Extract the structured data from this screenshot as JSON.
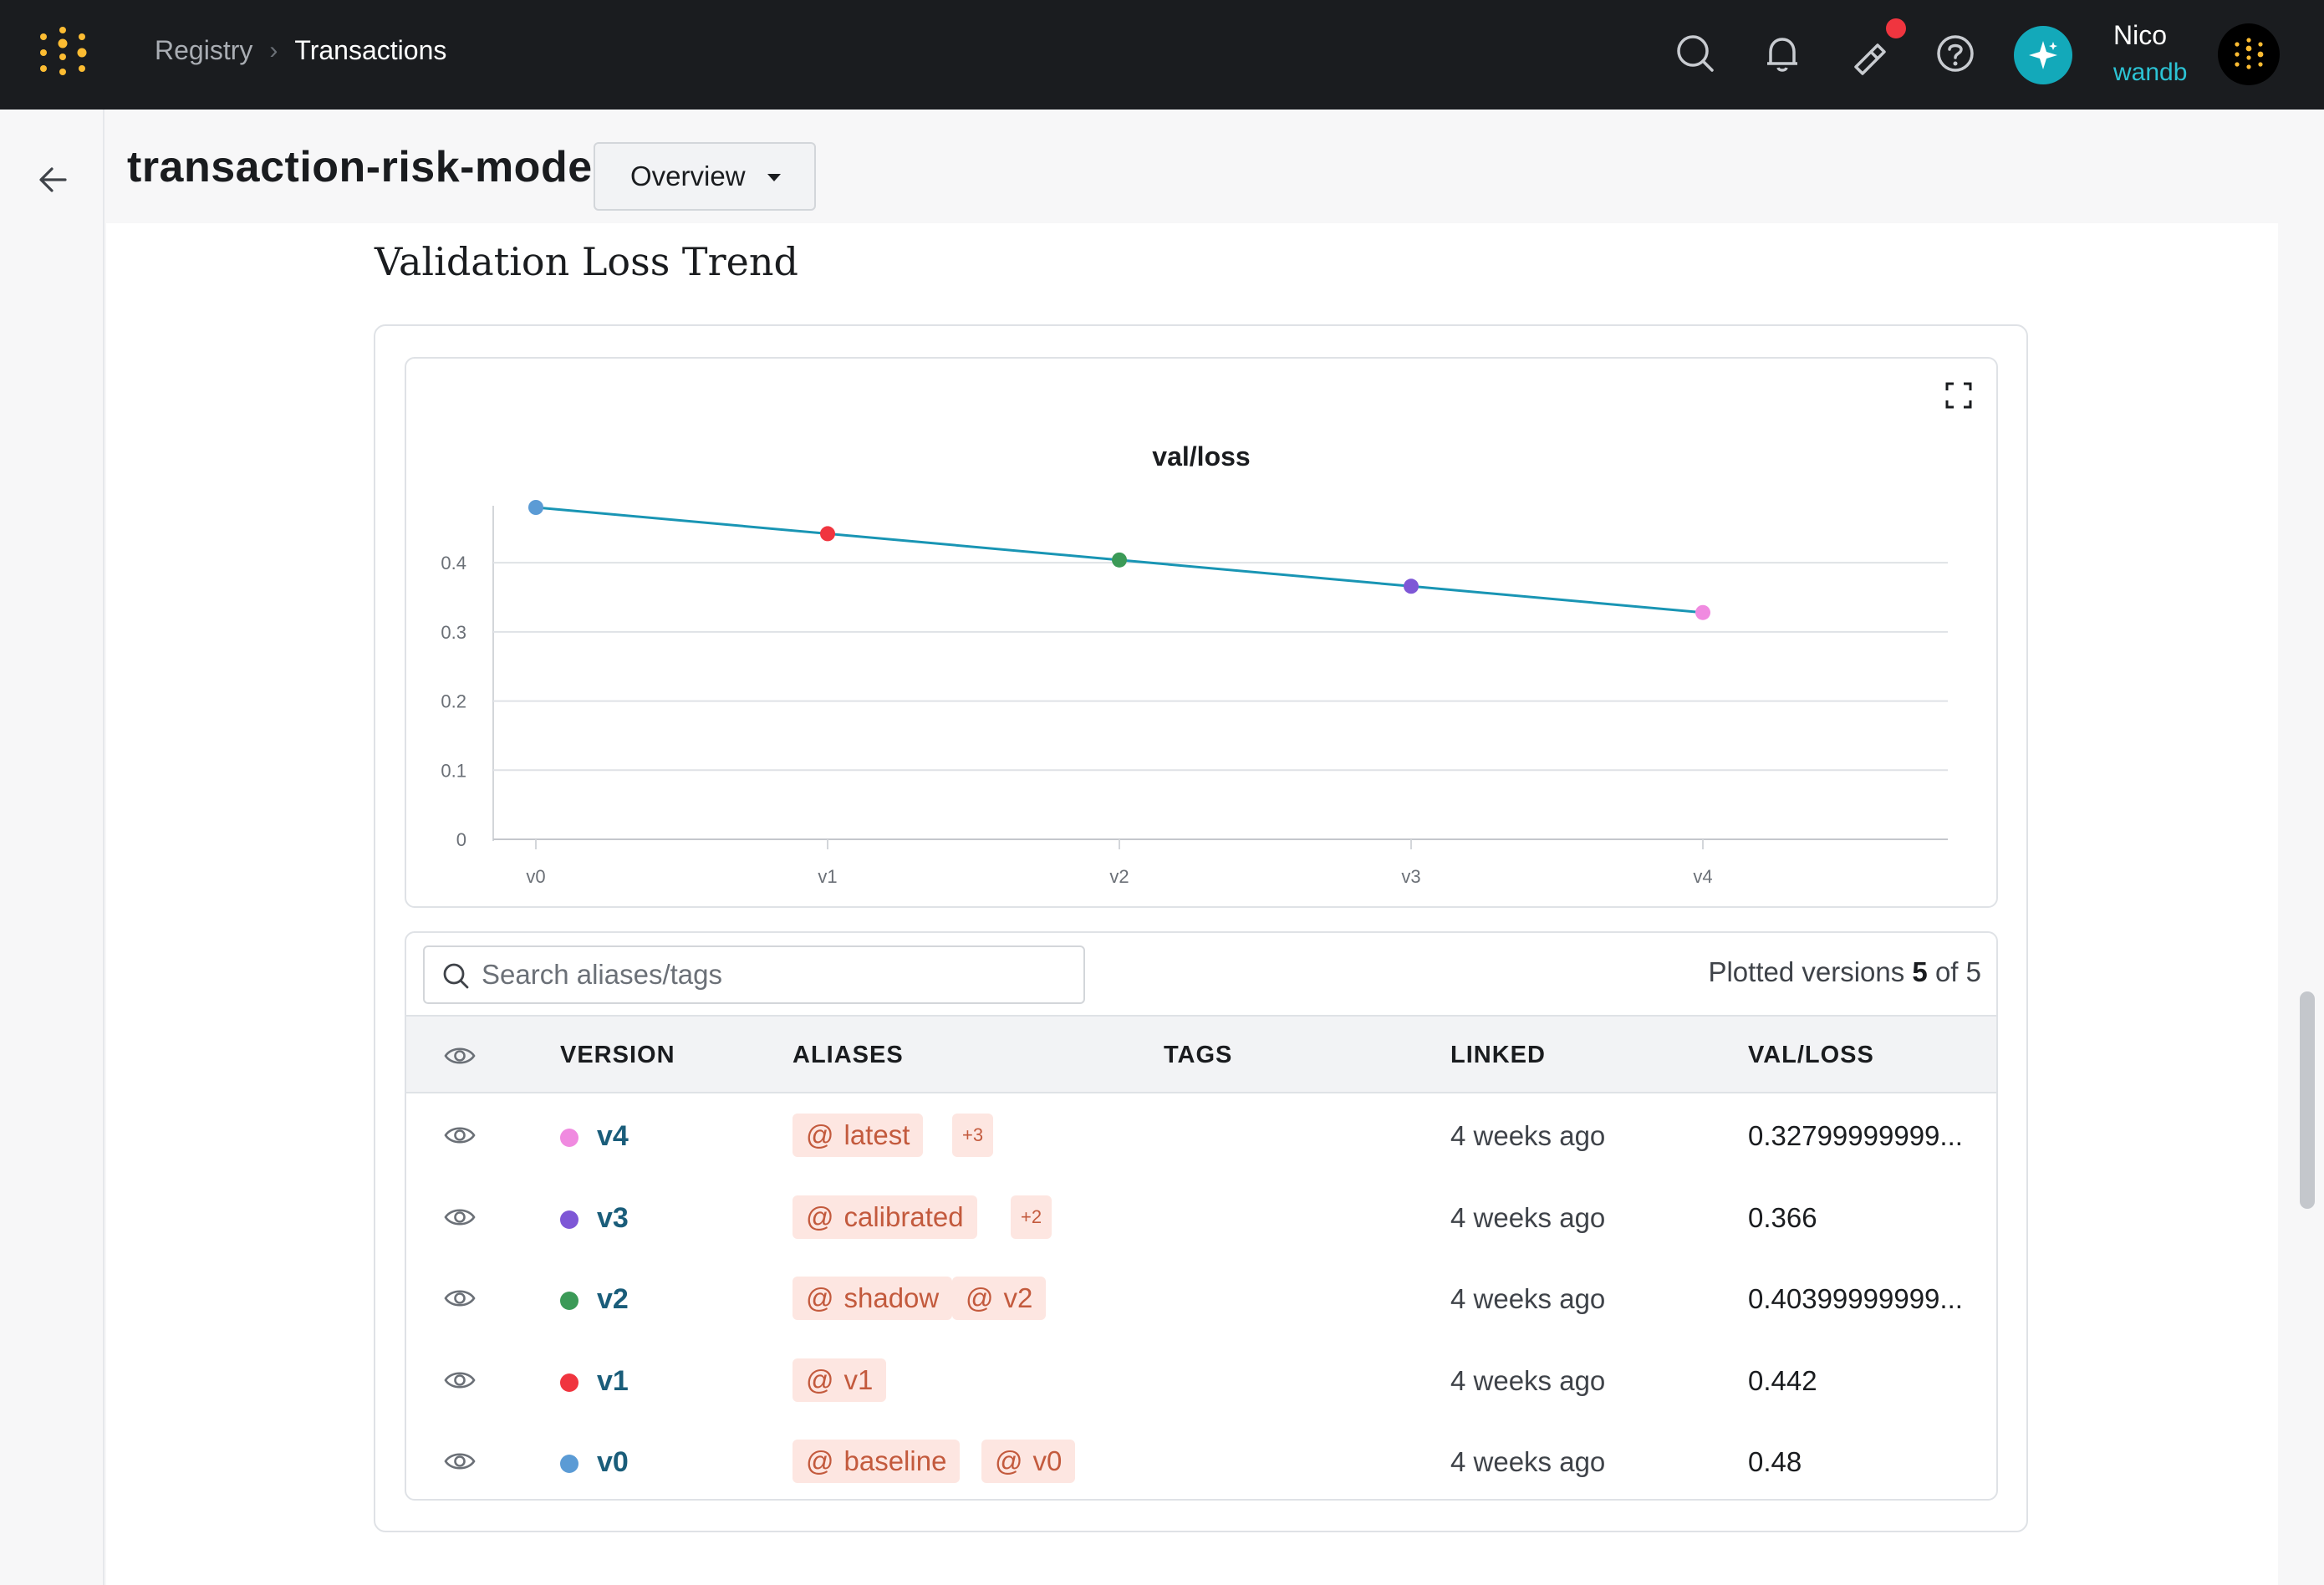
{
  "header": {
    "breadcrumb": [
      "Registry",
      "Transactions"
    ],
    "user_name": "Nico",
    "user_team": "wandb",
    "icons": [
      "search-icon",
      "bell-icon",
      "flashlight-icon",
      "help-icon",
      "sparkle-icon"
    ],
    "accent": "#13a9ba",
    "notification_color": "#f0353f"
  },
  "page": {
    "title": "transaction-risk-model",
    "view_select": "Overview",
    "section_title": "Validation Loss Trend"
  },
  "chart_data": {
    "type": "line",
    "title": "val/loss",
    "categories": [
      "v0",
      "v1",
      "v2",
      "v3",
      "v4"
    ],
    "values": [
      0.48,
      0.442,
      0.404,
      0.366,
      0.328
    ],
    "point_colors": [
      "#5b9bd5",
      "#f0353f",
      "#3b9a57",
      "#7e57d6",
      "#f08ae0"
    ],
    "line_color": "#1995b4",
    "y_ticks": [
      "0",
      "0.1",
      "0.2",
      "0.3",
      "0.4"
    ],
    "ylim": [
      0,
      0.48
    ],
    "grid": true
  },
  "table": {
    "search_placeholder": "Search aliases/tags",
    "plotted_prefix": "Plotted versions",
    "plotted_count": "5",
    "plotted_suffix": "of 5",
    "columns": [
      "VERSION",
      "ALIASES",
      "TAGS",
      "LINKED",
      "VAL/LOSS"
    ],
    "rows": [
      {
        "version": "v4",
        "color": "#f08ae0",
        "aliases": [
          "latest"
        ],
        "more": "+3",
        "linked": "4 weeks ago",
        "val_loss": "0.32799999999..."
      },
      {
        "version": "v3",
        "color": "#7e57d6",
        "aliases": [
          "calibrated"
        ],
        "more": "+2",
        "linked": "4 weeks ago",
        "val_loss": "0.366"
      },
      {
        "version": "v2",
        "color": "#3b9a57",
        "aliases": [
          "shadow",
          "v2"
        ],
        "more": "",
        "linked": "4 weeks ago",
        "val_loss": "0.40399999999..."
      },
      {
        "version": "v1",
        "color": "#f0353f",
        "aliases": [
          "v1"
        ],
        "more": "",
        "linked": "4 weeks ago",
        "val_loss": "0.442"
      },
      {
        "version": "v0",
        "color": "#5b9bd5",
        "aliases": [
          "baseline",
          "v0"
        ],
        "more": "",
        "linked": "4 weeks ago",
        "val_loss": "0.48"
      }
    ]
  }
}
